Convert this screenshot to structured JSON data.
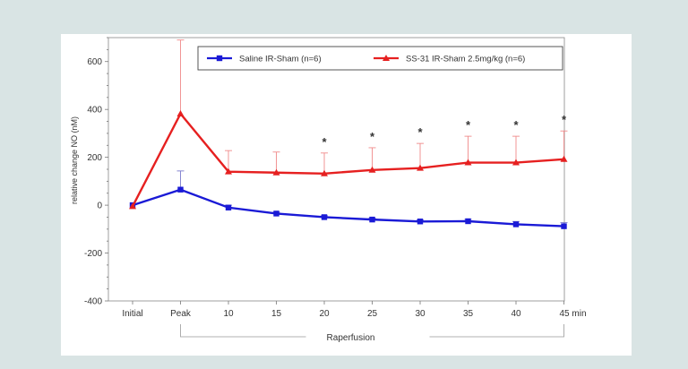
{
  "chart_data": {
    "type": "line",
    "categories": [
      "Initial",
      "Peak",
      "10",
      "15",
      "20",
      "25",
      "30",
      "35",
      "40",
      "45"
    ],
    "x_unit": "min",
    "x_group_label": "Raperfusion",
    "ylabel": "relative change NO (nM)",
    "xlabel": "",
    "ylim": [
      -400,
      700
    ],
    "y_ticks": [
      600,
      400,
      200,
      0,
      -200,
      -400
    ],
    "legend_position": "top-right",
    "series": [
      {
        "name": "Saline IR-Sham (n=6)",
        "color": "#1a1ad6",
        "marker": "square",
        "values": [
          0,
          65,
          -10,
          -35,
          -50,
          -60,
          -68,
          -67,
          -80,
          -88
        ],
        "error_up": [
          0,
          78,
          10,
          6,
          6,
          6,
          6,
          8,
          12,
          15
        ]
      },
      {
        "name": "SS-31 IR-Sham 2.5mg/kg (n=6)",
        "color": "#e62020",
        "marker": "triangle",
        "values": [
          -5,
          382,
          140,
          136,
          132,
          147,
          155,
          178,
          178,
          192
        ],
        "error_up": [
          0,
          308,
          88,
          86,
          86,
          93,
          103,
          110,
          110,
          118
        ]
      }
    ],
    "significance_marks": [
      {
        "category": "20",
        "label": "*"
      },
      {
        "category": "25",
        "label": "*"
      },
      {
        "category": "30",
        "label": "*"
      },
      {
        "category": "35",
        "label": "*"
      },
      {
        "category": "40",
        "label": "*"
      },
      {
        "category": "45",
        "label": "*"
      }
    ]
  }
}
